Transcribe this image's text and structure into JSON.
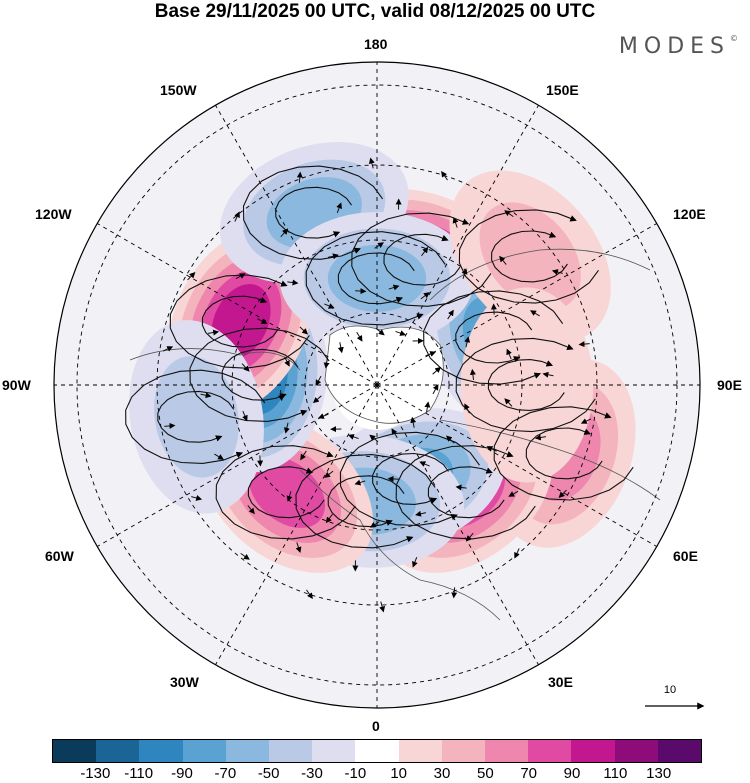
{
  "title": "Base 29/11/2025 00 UTC, valid 08/12/2025 00 UTC",
  "brand": "MODES",
  "brand_mark": "©",
  "longitude_labels": {
    "lon_180": "180",
    "lon_150e": "150E",
    "lon_120e": "120E",
    "lon_90e": "90E",
    "lon_60e": "60E",
    "lon_30e": "30E",
    "lon_0": "0",
    "lon_30w": "30W",
    "lon_60w": "60W",
    "lon_90w": "90W",
    "lon_120w": "120W",
    "lon_150w": "150W"
  },
  "reference_vector": "10",
  "colorbar": {
    "colors": [
      "#0b3b5a",
      "#1a6496",
      "#2f86bf",
      "#5aa2d2",
      "#8bb8de",
      "#b9c9e6",
      "#dedef0",
      "#ffffff",
      "#f9d6d6",
      "#f4b4bd",
      "#ee86ad",
      "#e04aa3",
      "#c2178f",
      "#8e0b7a",
      "#590a6b"
    ],
    "tick_labels": [
      "-130",
      "-110",
      "-90",
      "-70",
      "-50",
      "-30",
      "-10",
      "10",
      "30",
      "50",
      "70",
      "90",
      "110",
      "130"
    ]
  },
  "anomalies": [
    {
      "lon": 160,
      "lat": 50,
      "value": 100
    },
    {
      "lon": 112,
      "lat": 52,
      "value": -70
    },
    {
      "lon": 70,
      "lat": 30,
      "value": 50
    },
    {
      "lon": 40,
      "lat": 48,
      "value": 70
    },
    {
      "lon": 20,
      "lat": 60,
      "value": -70
    },
    {
      "lon": -5,
      "lat": 55,
      "value": -60
    },
    {
      "lon": -40,
      "lat": 48,
      "value": 80
    },
    {
      "lon": -95,
      "lat": 55,
      "value": -90
    },
    {
      "lon": -115,
      "lat": 45,
      "value": 100
    },
    {
      "lon": -160,
      "lat": 35,
      "value": -55
    },
    {
      "lon": 180,
      "lat": 58,
      "value": -60
    },
    {
      "lon": 130,
      "lat": 30,
      "value": 30
    },
    {
      "lon": -80,
      "lat": 35,
      "value": -40
    },
    {
      "lon": 90,
      "lat": 45,
      "value": 20
    }
  ]
}
